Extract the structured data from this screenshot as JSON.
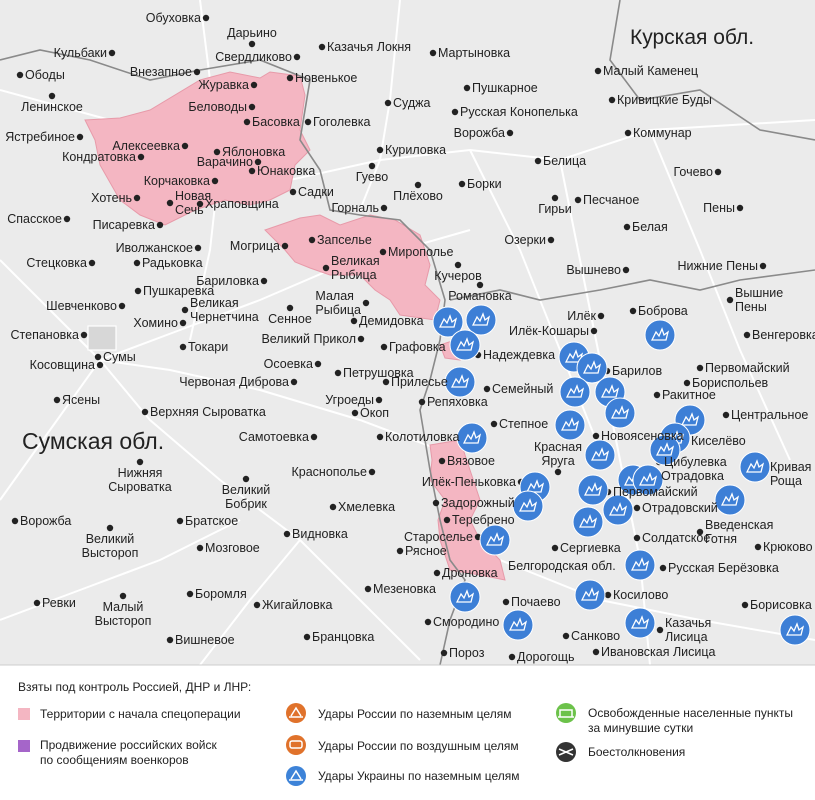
{
  "map": {
    "regions": [
      "Курская обл.",
      "Сумская обл.",
      "Белгородская обл."
    ],
    "towns": [
      "Обуховка",
      "Дарьино",
      "Свердликово",
      "Казачья Локня",
      "Мартыновка",
      "Кульбаки",
      "Ободы",
      "Внезапное",
      "Новенькое",
      "Пушкарное",
      "Малый Каменец",
      "Журавка",
      "Беловоды",
      "Ленинское",
      "Суджа",
      "Русская Конопелька",
      "Кривицкие Буды",
      "Ястребиное",
      "Басовка",
      "Алексеевка",
      "Гоголевка",
      "Ворожба",
      "Коммунар",
      "Варачино",
      "Яблоновка",
      "Кондратовка",
      "Куриловка",
      "Белица",
      "Гочево",
      "Юнаковка",
      "Корчаковка",
      "Гуево",
      "Борки",
      "Садки",
      "Плёхово",
      "Хотень",
      "Храповщина",
      "Горналь",
      "Гирьи",
      "Песчаное",
      "Пены",
      "Спасское",
      "Писаревка",
      "Новая\nСечь",
      "Белая",
      "Иволжанское",
      "Запселье",
      "Мирополье",
      "Озерки",
      "Стецковка",
      "Радьковка",
      "Могрица",
      "Великая\nРыбица",
      "Кучеров",
      "Вышнево",
      "Нижние Пены",
      "Бариловка",
      "Пушкаревка",
      "Шевченково",
      "Хомино",
      "Великая\nЧернетчина",
      "Романовка",
      "Вышние\nПены",
      "Малая\nРыбица",
      "Демидовка",
      "Сенное",
      "Илёк",
      "Боброва",
      "Венгеровка",
      "Илёк-Кошары",
      "Степановка",
      "Великий Прикол",
      "Графовка",
      "Надеждевка",
      "Токари",
      "Сумы",
      "Косовщина",
      "Первомайский",
      "Осоевка",
      "Петрушовка",
      "Барилов",
      "Бориспольев",
      "Червоная Диброва",
      "Прилесье",
      "Семейный",
      "Ракитное",
      "Ясены",
      "Угроеды",
      "Репяховка",
      "Окоп",
      "Верхняя Сыроватка",
      "Центральное",
      "Степное",
      "Колотиловка",
      "Самотоевка",
      "Новоясеновка",
      "Киселёво",
      "Красная\nЯруга",
      "Вязовое",
      "Цибулевка",
      "Кривая\nРоща",
      "Нижняя\nСыроватка",
      "Краснополье",
      "Илёк-Пеньковка",
      "Отрадовка",
      "Великий\nБобрик",
      "Первомайский",
      "Задорожный",
      "Хмелевка",
      "Отрадовский",
      "Ворожба",
      "Теребрено",
      "Братское",
      "Введенская\nГотня",
      "Староселье",
      "Видновка",
      "Солдатское",
      "Великий\nВыстороп",
      "Мозговое",
      "Рясное",
      "Сергиевка",
      "Крюково",
      "Дроновка",
      "Русская Берёзовка",
      "Боромля",
      "Мезеновка",
      "Жигайловка",
      "Ревки",
      "Косилово",
      "Почаево",
      "Борисовка",
      "Малый\nВыстороп",
      "Смородино",
      "Казачья\nЛисица",
      "Вишневое",
      "Бранцовка",
      "Санково",
      "Ивановская Лисица",
      "Пороз",
      "Дорогощь"
    ]
  },
  "legend": {
    "title": "Взяты под контроль Россией, ДНР и ЛНР:",
    "items": [
      "Территории с начала спецоперации",
      "Продвижение российских войск\nпо сообщениям военкоров",
      "Удары России по наземным целям",
      "Удары России по воздушным целям",
      "Удары Украины по наземным целям",
      "Освобожденные населенные пункты\nза минувшие сутки",
      "Боестолкновения"
    ]
  }
}
